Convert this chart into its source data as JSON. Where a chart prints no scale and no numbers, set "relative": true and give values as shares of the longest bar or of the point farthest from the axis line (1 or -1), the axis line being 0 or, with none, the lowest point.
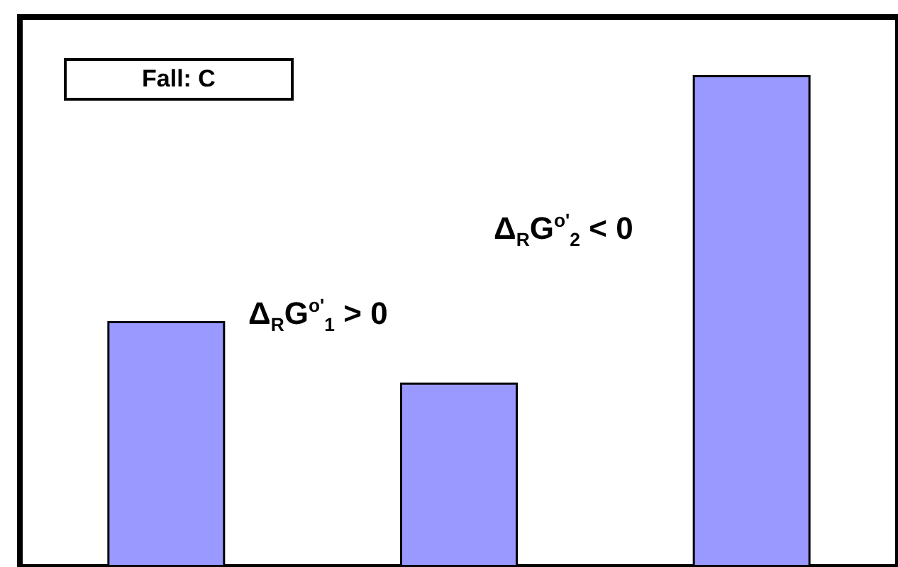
{
  "chart_data": {
    "type": "bar",
    "relative": true,
    "categories": [
      null,
      null,
      null
    ],
    "values": [
      0.5,
      0.375,
      1
    ],
    "color": "#9999ff",
    "annotations": [
      "Fall: C",
      "Δ$_{R}$G$^{o'}$$_{1}$ > 0",
      "Δ$_{R}$G$^{o'}$$_{2}$ < 0"
    ]
  }
}
